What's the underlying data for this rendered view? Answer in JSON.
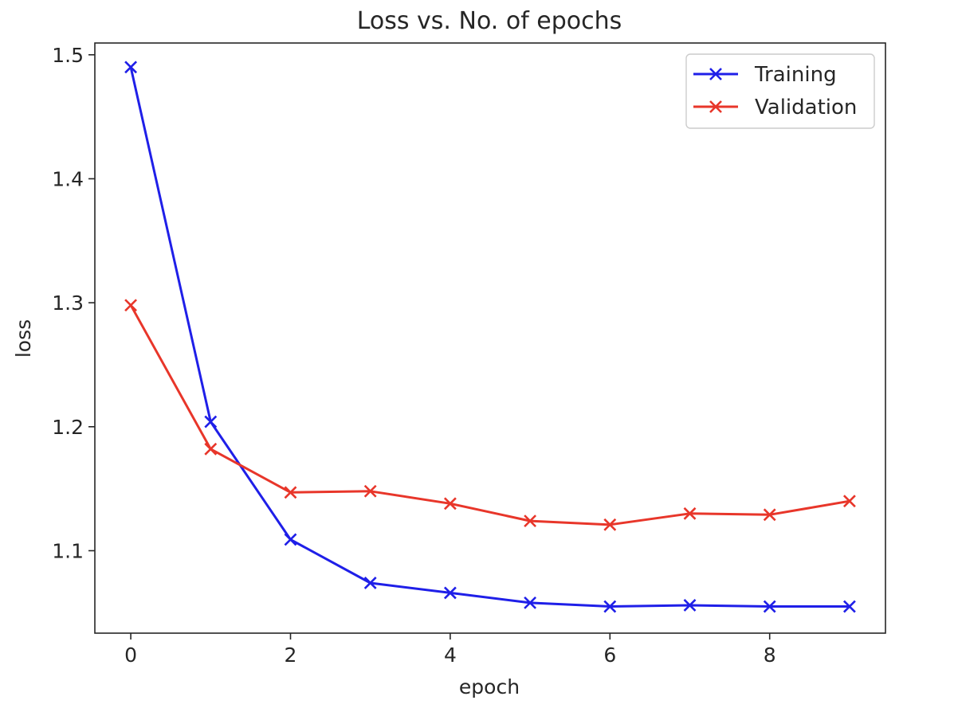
{
  "chart_data": {
    "type": "line",
    "title": "Loss vs. No. of epochs",
    "xlabel": "epoch",
    "ylabel": "loss",
    "xlim": [
      -0.45,
      9.45
    ],
    "ylim": [
      1.0335,
      1.5095
    ],
    "xticks": [
      0,
      2,
      4,
      6,
      8
    ],
    "yticks": [
      1.1,
      1.2,
      1.3,
      1.4,
      1.5
    ],
    "ytick_labels": [
      "1.1",
      "1.2",
      "1.3",
      "1.4",
      "1.5"
    ],
    "grid": false,
    "legend_position": "top-right",
    "x": [
      0,
      1,
      2,
      3,
      4,
      5,
      6,
      7,
      8,
      9
    ],
    "series": [
      {
        "name": "Training",
        "color": "#1f1fe8",
        "marker": "x",
        "values": [
          1.49,
          1.204,
          1.109,
          1.074,
          1.066,
          1.058,
          1.055,
          1.056,
          1.055,
          1.055
        ]
      },
      {
        "name": "Validation",
        "color": "#e8362a",
        "marker": "x",
        "values": [
          1.298,
          1.182,
          1.147,
          1.148,
          1.138,
          1.124,
          1.121,
          1.13,
          1.129,
          1.14
        ]
      }
    ]
  }
}
